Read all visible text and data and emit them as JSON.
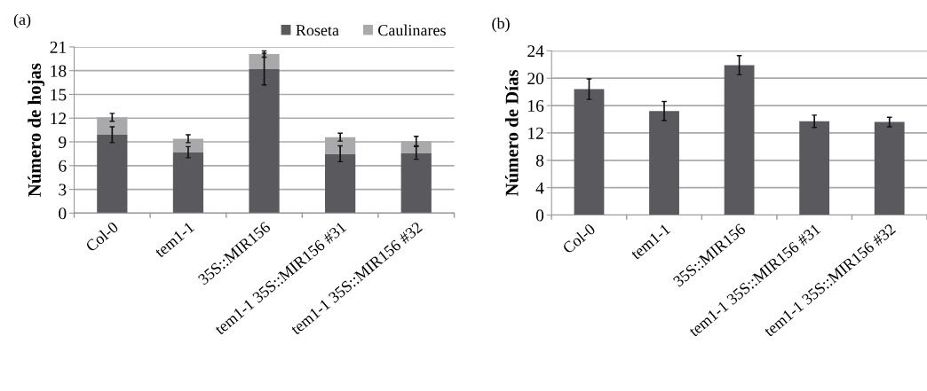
{
  "chart_data": [
    {
      "type": "bar",
      "title": "(a)",
      "ylabel": "Número de hojas",
      "categories": [
        "Col-0",
        "tem1-1",
        "35S::MIR156",
        "tem1-1 35S::MIR156 #31",
        "tem1-1 35S::MIR156 #32"
      ],
      "stacked": true,
      "series": [
        {
          "name": "Roseta",
          "color": "#5a5a5e",
          "values": [
            9.9,
            7.7,
            18.2,
            7.5,
            7.6
          ],
          "errors": [
            1.0,
            0.7,
            2.0,
            1.0,
            0.8
          ]
        },
        {
          "name": "Caulinares",
          "color": "#a9a9ab",
          "values": [
            2.2,
            1.7,
            1.9,
            2.1,
            1.5
          ],
          "errors": [
            0.5,
            0.5,
            0.4,
            0.5,
            0.6
          ]
        }
      ],
      "ylim": [
        0,
        21
      ],
      "yticks": [
        0,
        3,
        6,
        9,
        12,
        15,
        18,
        21
      ],
      "grid": "y",
      "legend": "top right"
    },
    {
      "type": "bar",
      "title": "(b)",
      "ylabel": "Número de Días",
      "categories": [
        "Col-0",
        "tem1-1",
        "35S::MIR156",
        "tem1-1 35S::MIR156 #31",
        "tem1-1 35S::MIR156 #32"
      ],
      "series": [
        {
          "color": "#5a5a5e",
          "values": [
            18.4,
            15.2,
            21.9,
            13.7,
            13.6
          ],
          "errors": [
            1.5,
            1.4,
            1.4,
            0.9,
            0.7
          ]
        }
      ],
      "ylim": [
        0,
        24
      ],
      "yticks": [
        0,
        4,
        8,
        12,
        16,
        20,
        24
      ],
      "grid": "y"
    }
  ]
}
